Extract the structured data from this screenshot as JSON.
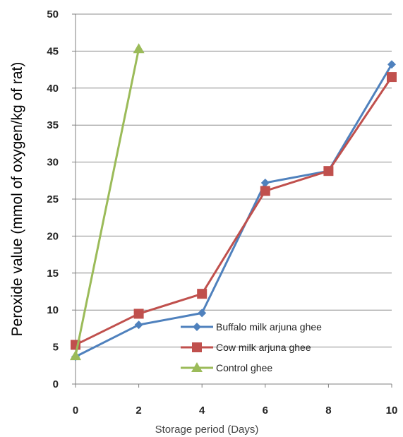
{
  "chart_data": {
    "type": "line",
    "title": "",
    "xlabel": "Storage period (Days)",
    "ylabel": "Peroxide value (mmol of oxygen/kg of rat)",
    "xlim": [
      0,
      10
    ],
    "ylim": [
      0,
      50
    ],
    "x_ticks": [
      "0",
      "2",
      "4",
      "6",
      "8",
      "10"
    ],
    "y_ticks": [
      "0",
      "5",
      "10",
      "15",
      "20",
      "25",
      "30",
      "35",
      "40",
      "45",
      "50"
    ],
    "grid": "horizontal",
    "legend_position": "bottom-right",
    "series": [
      {
        "name": "Buffalo milk arjuna ghee",
        "color": "#4F81BD",
        "marker": "diamond",
        "x": [
          0,
          2,
          4,
          6,
          8,
          10
        ],
        "y": [
          3.7,
          8.0,
          9.6,
          27.2,
          28.8,
          43.2
        ]
      },
      {
        "name": "Cow milk arjuna ghee",
        "color": "#C0504D",
        "marker": "square",
        "x": [
          0,
          2,
          4,
          6,
          8,
          10
        ],
        "y": [
          5.3,
          9.5,
          12.2,
          26.1,
          28.8,
          41.5
        ]
      },
      {
        "name": "Control ghee",
        "color": "#9BBB59",
        "marker": "triangle",
        "x": [
          0,
          2
        ],
        "y": [
          3.8,
          45.3
        ]
      }
    ]
  }
}
